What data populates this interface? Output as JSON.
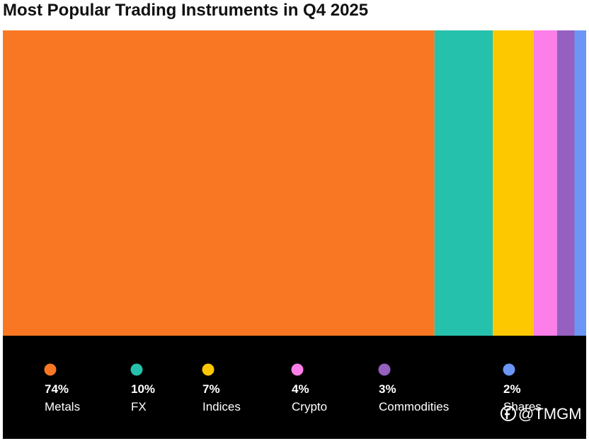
{
  "chart_data": {
    "type": "share-bar",
    "title": "Most Popular Trading Instruments in Q4 2025",
    "categories": [
      "Metals",
      "FX",
      "Indices",
      "Crypto",
      "Commodities",
      "Shares"
    ],
    "values": [
      74,
      10,
      7,
      4,
      3,
      2
    ],
    "value_labels": [
      "74%",
      "10%",
      "7%",
      "4%",
      "3%",
      "2%"
    ],
    "colors": [
      "#f97722",
      "#26c1ac",
      "#fdc800",
      "#fc7ee8",
      "#9560c0",
      "#6b96f5"
    ],
    "watermark": "@TMGM"
  }
}
